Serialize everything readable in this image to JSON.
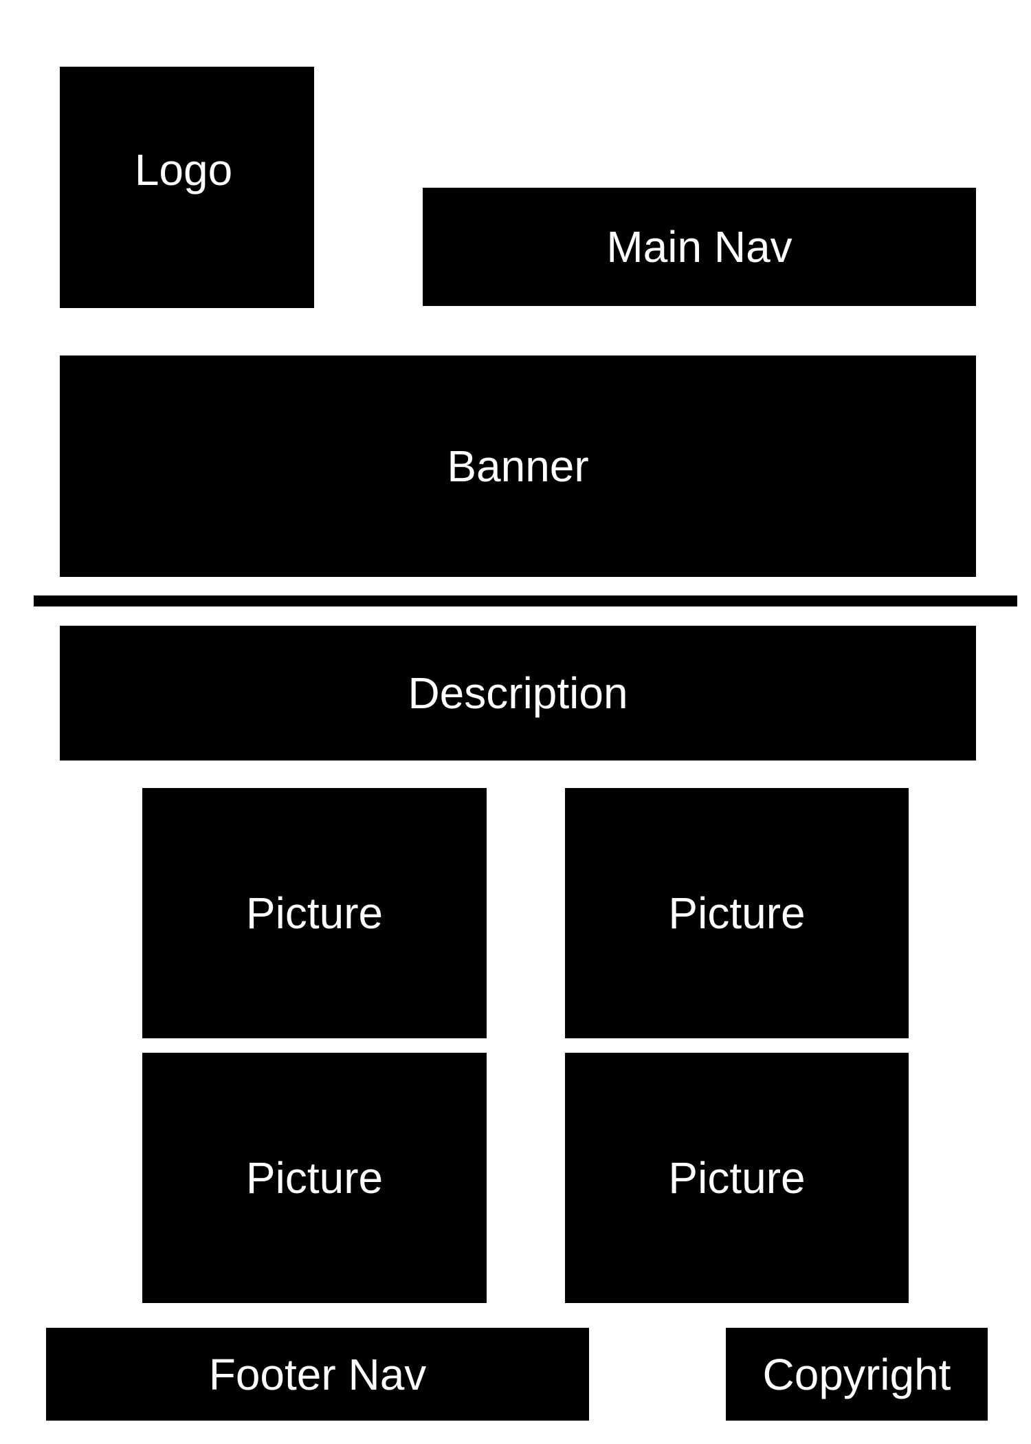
{
  "header": {
    "logo_label": "Logo",
    "main_nav_label": "Main Nav"
  },
  "banner": {
    "label": "Banner"
  },
  "content": {
    "description_label": "Description",
    "pictures": [
      {
        "label": "Picture"
      },
      {
        "label": "Picture"
      },
      {
        "label": "Picture"
      },
      {
        "label": "Picture"
      }
    ]
  },
  "footer": {
    "footer_nav_label": "Footer Nav",
    "copyright_label": "Copyright"
  },
  "colors": {
    "block_fill": "#000000",
    "text": "#ffffff",
    "background": "#ffffff"
  }
}
